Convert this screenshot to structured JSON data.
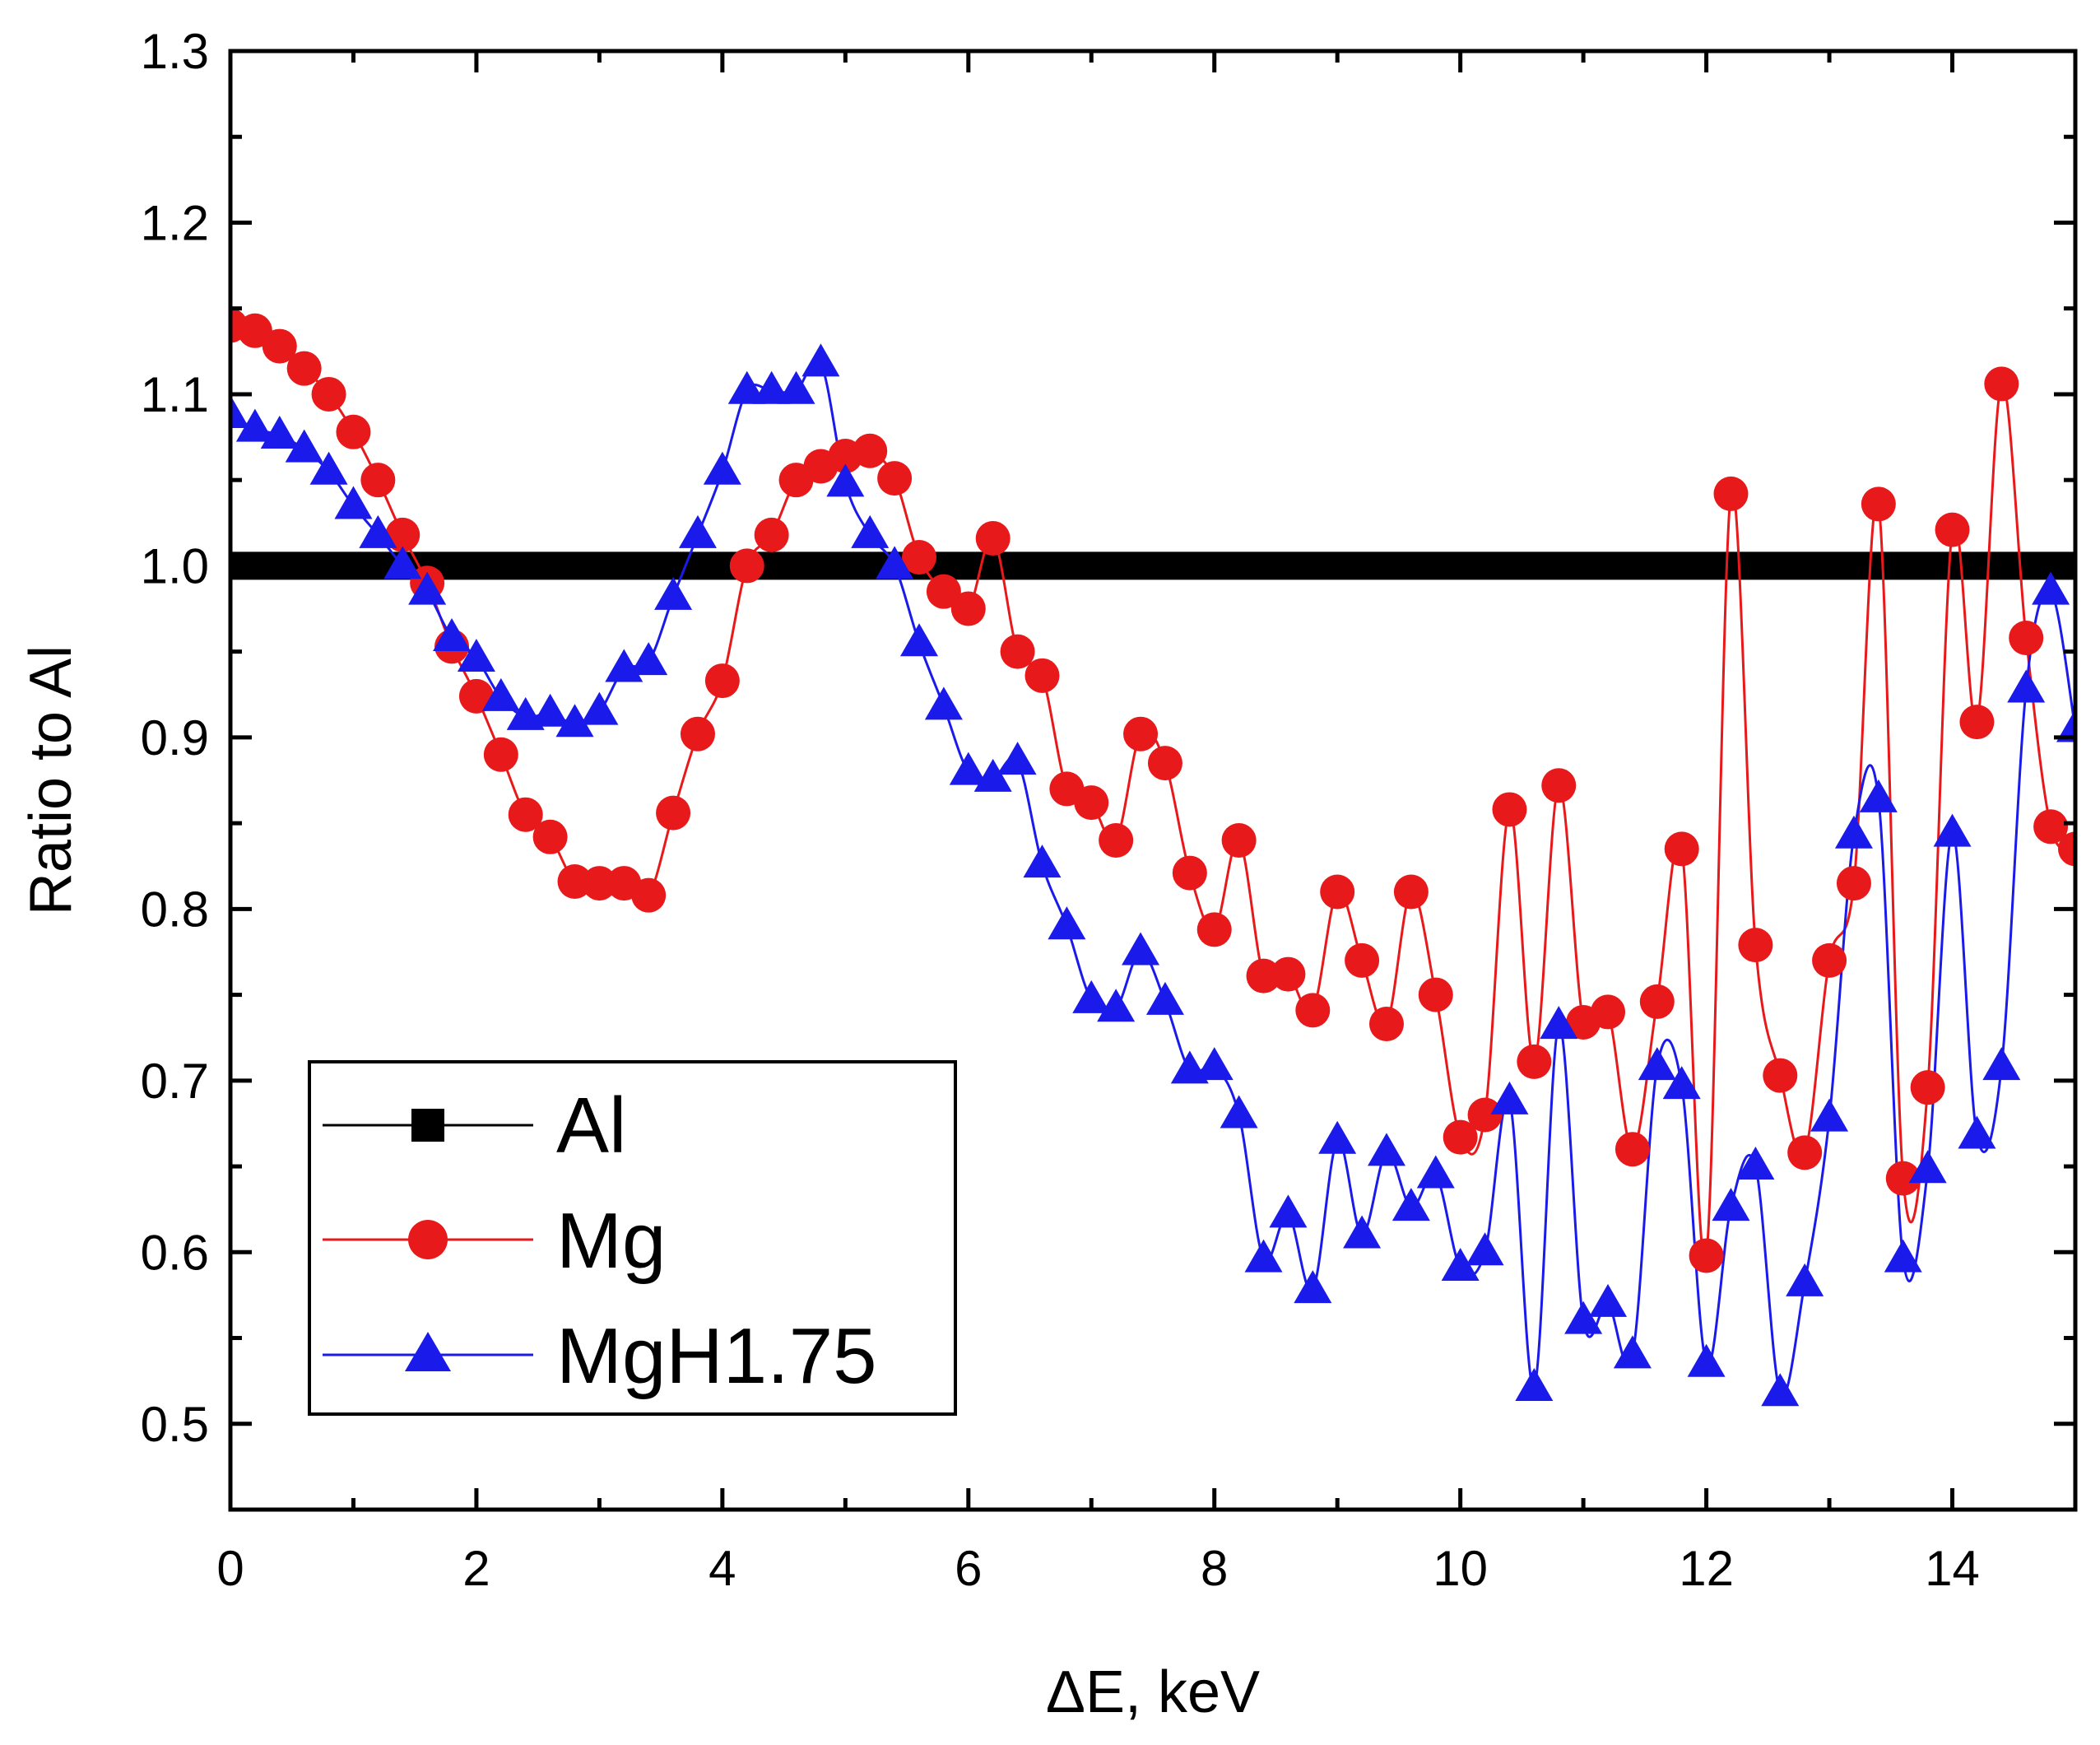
{
  "chart_data": {
    "type": "scatter",
    "title": "",
    "xlabel": "ΔE, keV",
    "ylabel": "Ratio to Al",
    "xlim": [
      0,
      15
    ],
    "ylim": [
      0.45,
      1.3
    ],
    "x_ticks": [
      0,
      2,
      4,
      6,
      8,
      10,
      12,
      14
    ],
    "x_tick_labels": [
      "0",
      "2",
      "4",
      "6",
      "8",
      "10",
      "12",
      "14"
    ],
    "y_ticks": [
      0.5,
      0.6,
      0.7,
      0.8,
      0.9,
      1.0,
      1.1,
      1.2,
      1.3
    ],
    "y_tick_labels": [
      "0.5",
      "0.6",
      "0.7",
      "0.8",
      "0.9",
      "1.0",
      "1.1",
      "1.2",
      "1.3"
    ],
    "grid": false,
    "legend_position": "bottom-left",
    "series": [
      {
        "name": "Al",
        "color": "#000000",
        "marker": "square",
        "x": [
          0,
          15
        ],
        "y": [
          1.0,
          1.0
        ]
      },
      {
        "name": "Mg",
        "color": "#e8191b",
        "marker": "circle",
        "x": [
          0,
          0.2,
          0.4,
          0.6,
          0.8,
          1.0,
          1.2,
          1.4,
          1.6,
          1.8,
          2.0,
          2.2,
          2.4,
          2.6,
          2.8,
          3.0,
          3.2,
          3.4,
          3.6,
          3.8,
          4.0,
          4.2,
          4.4,
          4.6,
          4.8,
          5.0,
          5.2,
          5.4,
          5.6,
          5.8,
          6.0,
          6.2,
          6.4,
          6.6,
          6.8,
          7.0,
          7.2,
          7.4,
          7.6,
          7.8,
          8.0,
          8.2,
          8.4,
          8.6,
          8.8,
          9.0,
          9.2,
          9.4,
          9.6,
          9.8,
          10.0,
          10.2,
          10.4,
          10.6,
          10.8,
          11.0,
          11.2,
          11.4,
          11.6,
          11.8,
          12.0,
          12.2,
          12.4,
          12.6,
          12.8,
          13.0,
          13.2,
          13.4,
          13.6,
          13.8,
          14.0,
          14.2,
          14.4,
          14.6,
          14.8,
          15.0
        ],
        "y": [
          1.14,
          1.137,
          1.128,
          1.115,
          1.1,
          1.078,
          1.05,
          1.018,
          0.99,
          0.953,
          0.924,
          0.89,
          0.855,
          0.842,
          0.816,
          0.815,
          0.815,
          0.808,
          0.856,
          0.902,
          0.933,
          1.0,
          1.018,
          1.05,
          1.058,
          1.064,
          1.067,
          1.051,
          1.005,
          0.985,
          0.975,
          1.016,
          0.95,
          0.936,
          0.87,
          0.862,
          0.84,
          0.902,
          0.885,
          0.821,
          0.788,
          0.84,
          0.761,
          0.762,
          0.741,
          0.81,
          0.77,
          0.733,
          0.81,
          0.75,
          0.667,
          0.68,
          0.858,
          0.711,
          0.872,
          0.734,
          0.74,
          0.66,
          0.746,
          0.835,
          0.598,
          1.042,
          0.779,
          0.703,
          0.658,
          0.77,
          0.815,
          1.036,
          0.643,
          0.696,
          1.021,
          0.909,
          1.106,
          0.958,
          0.848,
          0.835
        ]
      },
      {
        "name": "MgH1.75",
        "color": "#1a1aeb",
        "marker": "triangle",
        "x": [
          0,
          0.2,
          0.4,
          0.6,
          0.8,
          1.0,
          1.2,
          1.4,
          1.6,
          1.8,
          2.0,
          2.2,
          2.4,
          2.6,
          2.8,
          3.0,
          3.2,
          3.4,
          3.6,
          3.8,
          4.0,
          4.2,
          4.4,
          4.6,
          4.8,
          5.0,
          5.2,
          5.4,
          5.6,
          5.8,
          6.0,
          6.2,
          6.4,
          6.6,
          6.8,
          7.0,
          7.2,
          7.4,
          7.6,
          7.8,
          8.0,
          8.2,
          8.4,
          8.6,
          8.8,
          9.0,
          9.2,
          9.4,
          9.6,
          9.8,
          10.0,
          10.2,
          10.4,
          10.6,
          10.8,
          11.0,
          11.2,
          11.4,
          11.6,
          11.8,
          12.0,
          12.2,
          12.4,
          12.6,
          12.8,
          13.0,
          13.2,
          13.4,
          13.6,
          13.8,
          14.0,
          14.2,
          14.4,
          14.6,
          14.8,
          15.0
        ],
        "y": [
          1.088,
          1.08,
          1.076,
          1.068,
          1.055,
          1.035,
          1.018,
          1.0,
          0.985,
          0.958,
          0.946,
          0.923,
          0.912,
          0.914,
          0.908,
          0.915,
          0.94,
          0.944,
          0.982,
          1.018,
          1.055,
          1.102,
          1.102,
          1.102,
          1.118,
          1.048,
          1.018,
          1.0,
          0.955,
          0.918,
          0.88,
          0.876,
          0.886,
          0.826,
          0.79,
          0.747,
          0.742,
          0.775,
          0.746,
          0.706,
          0.708,
          0.68,
          0.596,
          0.622,
          0.578,
          0.665,
          0.61,
          0.658,
          0.626,
          0.645,
          0.591,
          0.6,
          0.688,
          0.521,
          0.732,
          0.56,
          0.57,
          0.54,
          0.708,
          0.697,
          0.535,
          0.626,
          0.65,
          0.518,
          0.582,
          0.678,
          0.843,
          0.864,
          0.596,
          0.648,
          0.844,
          0.668,
          0.708,
          0.928,
          0.985,
          0.905
        ]
      }
    ]
  }
}
